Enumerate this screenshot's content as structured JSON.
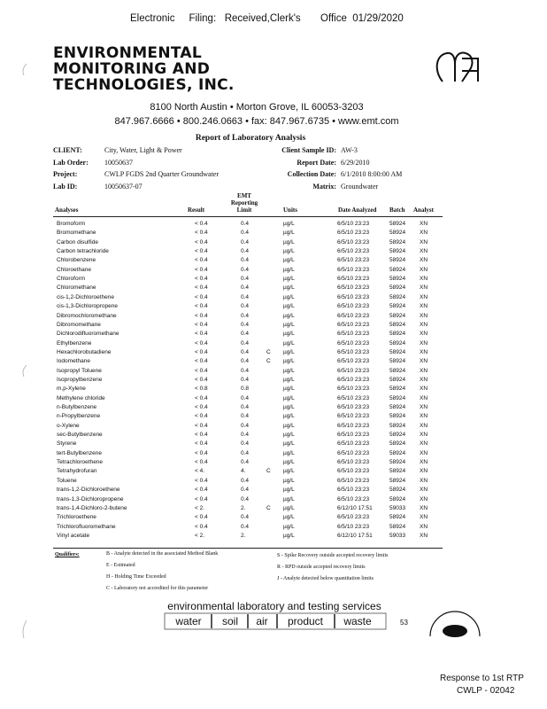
{
  "stamp": "Electronic     Filing:   Received,Clerk's       Office  01/29/2020",
  "company": {
    "name": [
      "ENVIRONMENTAL",
      "MONITORING AND",
      "TECHNOLOGIES, INC."
    ],
    "address": "8100 North Austin • Morton Grove, IL 60053-3203",
    "contact": "847.967.6666 • 800.246.0663 • fax: 847.967.6735 • www.emt.com"
  },
  "title": "Report of Laboratory Analysis",
  "info": {
    "left": [
      [
        "CLIENT:",
        "City, Water, Light & Power"
      ],
      [
        "Lab Order:",
        "10050637"
      ],
      [
        "Project:",
        "CWLP FGDS 2nd Quarter Groundwater"
      ],
      [
        "Lab ID:",
        "10050637-07"
      ]
    ],
    "right": [
      [
        "Client Sample ID:",
        "AW-3"
      ],
      [
        "Report Date:",
        "6/29/2010"
      ],
      [
        "Collection Date:",
        "6/1/2010 8:00:00 AM"
      ],
      [
        "Matrix:",
        "Groundwater"
      ]
    ]
  },
  "table": {
    "headers": {
      "analyses": "Analyses",
      "result": "Result",
      "limit": [
        "EMT",
        "Reporting",
        "Limit"
      ],
      "units": "Units",
      "date": "Date Analyzed",
      "batch": "Batch",
      "analyst": "Analyst"
    },
    "rows": [
      {
        "analyte": "Bromoform",
        "result": "< 0.4",
        "limit": "0.4",
        "units": "µg/L",
        "date": "6/5/10 23:23",
        "batch": "58924",
        "analyst": "XN"
      },
      {
        "analyte": "Bromomethane",
        "result": "< 0.4",
        "limit": "0.4",
        "units": "µg/L",
        "date": "6/5/10 23:23",
        "batch": "58924",
        "analyst": "XN"
      },
      {
        "analyte": "Carbon disulfide",
        "result": "< 0.4",
        "limit": "0.4",
        "units": "µg/L",
        "date": "6/5/10 23:23",
        "batch": "58924",
        "analyst": "XN"
      },
      {
        "analyte": "Carbon tetrachloride",
        "result": "< 0.4",
        "limit": "0.4",
        "units": "µg/L",
        "date": "6/5/10 23:23",
        "batch": "58924",
        "analyst": "XN"
      },
      {
        "analyte": "Chlorobenzene",
        "result": "< 0.4",
        "limit": "0.4",
        "units": "µg/L",
        "date": "6/5/10 23:23",
        "batch": "58924",
        "analyst": "XN"
      },
      {
        "analyte": "Chloroethane",
        "result": "< 0.4",
        "limit": "0.4",
        "units": "µg/L",
        "date": "6/5/10 23:23",
        "batch": "58924",
        "analyst": "XN"
      },
      {
        "analyte": "Chloroform",
        "result": "< 0.4",
        "limit": "0.4",
        "units": "µg/L",
        "date": "6/5/10 23:23",
        "batch": "58924",
        "analyst": "XN"
      },
      {
        "analyte": "Chloromethane",
        "result": "< 0.4",
        "limit": "0.4",
        "units": "µg/L",
        "date": "6/5/10 23:23",
        "batch": "58924",
        "analyst": "XN"
      },
      {
        "analyte": "cis-1,2-Dichloroethene",
        "result": "< 0.4",
        "limit": "0.4",
        "units": "µg/L",
        "date": "6/5/10 23:23",
        "batch": "58924",
        "analyst": "XN"
      },
      {
        "analyte": "cis-1,3-Dichloropropene",
        "result": "< 0.4",
        "limit": "0.4",
        "units": "µg/L",
        "date": "6/5/10 23:23",
        "batch": "58924",
        "analyst": "XN"
      },
      {
        "analyte": "Dibromochloromethane",
        "result": "< 0.4",
        "limit": "0.4",
        "units": "µg/L",
        "date": "6/5/10 23:23",
        "batch": "58924",
        "analyst": "XN"
      },
      {
        "analyte": "Dibromomethane",
        "result": "< 0.4",
        "limit": "0.4",
        "units": "µg/L",
        "date": "6/5/10 23:23",
        "batch": "58924",
        "analyst": "XN"
      },
      {
        "analyte": "Dichlorodifluoromethane",
        "result": "< 0.4",
        "limit": "0.4",
        "units": "µg/L",
        "date": "6/5/10 23:23",
        "batch": "58924",
        "analyst": "XN"
      },
      {
        "analyte": "Ethylbenzene",
        "result": "< 0.4",
        "limit": "0.4",
        "units": "µg/L",
        "date": "6/5/10 23:23",
        "batch": "58924",
        "analyst": "XN"
      },
      {
        "analyte": "Hexachlorobutadiene",
        "result": "< 0.4",
        "limit": "0.4",
        "qualifier": "C",
        "units": "µg/L",
        "date": "6/5/10 23:23",
        "batch": "58924",
        "analyst": "XN"
      },
      {
        "analyte": "Iodomethane",
        "result": "< 0.4",
        "limit": "0.4",
        "qualifier": "C",
        "units": "µg/L",
        "date": "6/5/10 23:23",
        "batch": "58924",
        "analyst": "XN"
      },
      {
        "analyte": "Isopropyl Toluene",
        "result": "< 0.4",
        "limit": "0.4",
        "units": "µg/L",
        "date": "6/5/10 23:23",
        "batch": "58924",
        "analyst": "XN"
      },
      {
        "analyte": "Isopropylbenzene",
        "result": "< 0.4",
        "limit": "0.4",
        "units": "µg/L",
        "date": "6/5/10 23:23",
        "batch": "58924",
        "analyst": "XN"
      },
      {
        "analyte": "m,p-Xylene",
        "result": "< 0.8",
        "limit": "0.8",
        "units": "µg/L",
        "date": "6/5/10 23:23",
        "batch": "58924",
        "analyst": "XN"
      },
      {
        "analyte": "Methylene chloride",
        "result": "< 0.4",
        "limit": "0.4",
        "units": "µg/L",
        "date": "6/5/10 23:23",
        "batch": "58924",
        "analyst": "XN"
      },
      {
        "analyte": "n-Butylbenzene",
        "result": "< 0.4",
        "limit": "0.4",
        "units": "µg/L",
        "date": "6/5/10 23:23",
        "batch": "58924",
        "analyst": "XN"
      },
      {
        "analyte": "n-Propylbenzene",
        "result": "< 0.4",
        "limit": "0.4",
        "units": "µg/L",
        "date": "6/5/10 23:23",
        "batch": "58924",
        "analyst": "XN"
      },
      {
        "analyte": "o-Xylene",
        "result": "< 0.4",
        "limit": "0.4",
        "units": "µg/L",
        "date": "6/5/10 23:23",
        "batch": "58924",
        "analyst": "XN"
      },
      {
        "analyte": "sec-Butylbenzene",
        "result": "< 0.4",
        "limit": "0.4",
        "units": "µg/L",
        "date": "6/5/10 23:23",
        "batch": "58924",
        "analyst": "XN"
      },
      {
        "analyte": "Styrene",
        "result": "< 0.4",
        "limit": "0.4",
        "units": "µg/L",
        "date": "6/5/10 23:23",
        "batch": "58924",
        "analyst": "XN"
      },
      {
        "analyte": "tert-Butylbenzene",
        "result": "< 0.4",
        "limit": "0.4",
        "units": "µg/L",
        "date": "6/5/10 23:23",
        "batch": "58924",
        "analyst": "XN"
      },
      {
        "analyte": "Tetrachloroethene",
        "result": "< 0.4",
        "limit": "0.4",
        "units": "µg/L",
        "date": "6/5/10 23:23",
        "batch": "58924",
        "analyst": "XN"
      },
      {
        "analyte": "Tetrahydrofuran",
        "result": "< 4.",
        "limit": "4.",
        "qualifier": "C",
        "units": "µg/L",
        "date": "6/5/10 23:23",
        "batch": "58924",
        "analyst": "XN"
      },
      {
        "analyte": "Toluene",
        "result": "< 0.4",
        "limit": "0.4",
        "units": "µg/L",
        "date": "6/5/10 23:23",
        "batch": "58924",
        "analyst": "XN"
      },
      {
        "analyte": "trans-1,2-Dichloroethene",
        "result": "< 0.4",
        "limit": "0.4",
        "units": "µg/L",
        "date": "6/5/10 23:23",
        "batch": "58924",
        "analyst": "XN"
      },
      {
        "analyte": "trans-1,3-Dichloropropene",
        "result": "< 0.4",
        "limit": "0.4",
        "units": "µg/L",
        "date": "6/5/10 23:23",
        "batch": "58924",
        "analyst": "XN"
      },
      {
        "analyte": "trans-1,4-Dichloro-2-butene",
        "result": "< 2.",
        "limit": "2.",
        "qualifier": "C",
        "units": "µg/L",
        "date": "6/12/10 17:51",
        "batch": "59033",
        "analyst": "XN"
      },
      {
        "analyte": "Trichloroethene",
        "result": "< 0.4",
        "limit": "0.4",
        "units": "µg/L",
        "date": "6/5/10 23:23",
        "batch": "58924",
        "analyst": "XN"
      },
      {
        "analyte": "Trichlorofluoromethane",
        "result": "< 0.4",
        "limit": "0.4",
        "units": "µg/L",
        "date": "6/5/10 23:23",
        "batch": "58924",
        "analyst": "XN"
      },
      {
        "analyte": "Vinyl acetate",
        "result": "< 2.",
        "limit": "2.",
        "units": "µg/L",
        "date": "6/12/10 17:51",
        "batch": "59033",
        "analyst": "XN"
      }
    ]
  },
  "qualifiers": {
    "label": "Qualifiers:",
    "left": [
      "B - Analyte detected in the associated Method Blank",
      "E - Estimated",
      "H - Holding Time Exceeded",
      "C - Laboratory not accredited for this parameter"
    ],
    "right": [
      "S - Spike Recovery outside accepted recovery limits",
      "R - RPD outside accepted recovery limits",
      "J - Analyte detected below quantitation limits"
    ]
  },
  "footer": {
    "tagline": "environmental laboratory and testing services",
    "services": [
      "water",
      "soil",
      "air",
      "product",
      "waste"
    ],
    "page": "53",
    "response": "Response to 1st RTP",
    "bates": "CWLP - 02042"
  }
}
